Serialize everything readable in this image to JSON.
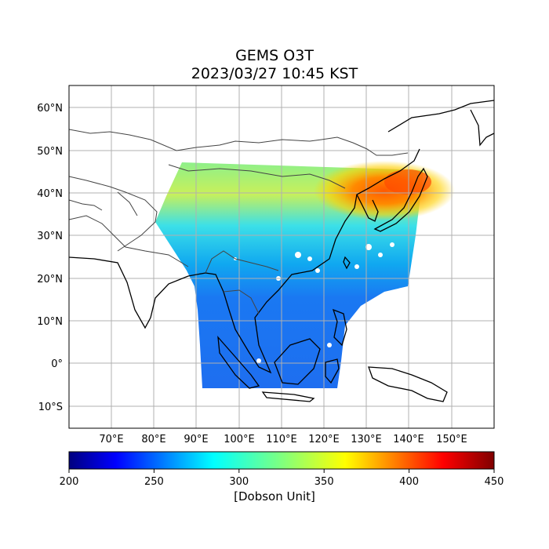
{
  "title": "GEMS O3T",
  "subtitle": "2023/03/27 10:45 KST",
  "lon_ticks": [
    "70°E",
    "80°E",
    "90°E",
    "100°E",
    "110°E",
    "120°E",
    "130°E",
    "140°E",
    "150°E"
  ],
  "lat_ticks": [
    "60°N",
    "50°N",
    "40°N",
    "30°N",
    "20°N",
    "10°N",
    "0°",
    "10°S"
  ],
  "colorbar": {
    "min": 200,
    "max": 450,
    "ticks": [
      "200",
      "250",
      "300",
      "350",
      "400",
      "450"
    ],
    "label": "[Dobson Unit]",
    "colormap": "jet"
  },
  "map_extent": {
    "lon": [
      60,
      160
    ],
    "lat": [
      -15,
      65
    ]
  }
}
